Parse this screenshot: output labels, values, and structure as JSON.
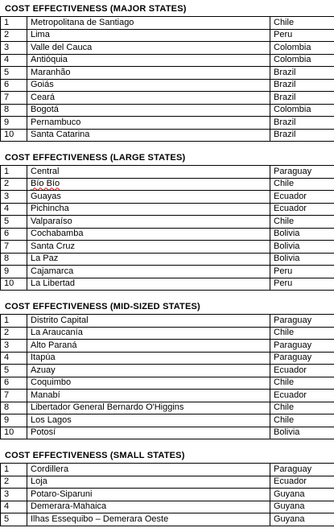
{
  "sections": [
    {
      "title": "COST EFFECTIVENESS  (MAJOR STATES)",
      "rows": [
        [
          1,
          "Metropolitana de Santiago",
          "Chile"
        ],
        [
          2,
          "Lima",
          "Peru"
        ],
        [
          3,
          "Valle del Cauca",
          "Colombia"
        ],
        [
          4,
          "Antióquia",
          "Colombia"
        ],
        [
          5,
          "Maranhão",
          "Brazil"
        ],
        [
          6,
          "Goiás",
          "Brazil"
        ],
        [
          7,
          "Ceará",
          "Brazil"
        ],
        [
          8,
          "Bogotá",
          "Colombia"
        ],
        [
          9,
          "Pernambuco",
          "Brazil"
        ],
        [
          10,
          "Santa Catarina",
          "Brazil"
        ]
      ]
    },
    {
      "title": "COST EFFECTIVENESS  (LARGE STATES)",
      "rows": [
        [
          1,
          "Central",
          "Paraguay"
        ],
        [
          2,
          "Bío Bío",
          "Chile"
        ],
        [
          3,
          "Guayas",
          "Ecuador"
        ],
        [
          4,
          "Pichincha",
          "Ecuador"
        ],
        [
          5,
          "Valparaíso",
          "Chile"
        ],
        [
          6,
          "Cochabamba",
          "Bolivia"
        ],
        [
          7,
          "Santa Cruz",
          "Bolivia"
        ],
        [
          8,
          "La Paz",
          "Bolivia"
        ],
        [
          9,
          "Cajamarca",
          "Peru"
        ],
        [
          10,
          "La Libertad",
          "Peru"
        ]
      ]
    },
    {
      "title": "COST EFFECTIVENESS  (MID-SIZED STATES)",
      "rows": [
        [
          1,
          "Distrito Capital",
          "Paraguay"
        ],
        [
          2,
          "La Araucanía",
          "Chile"
        ],
        [
          3,
          "Alto Paraná",
          "Paraguay"
        ],
        [
          4,
          "Itapúa",
          "Paraguay"
        ],
        [
          5,
          "Azuay",
          "Ecuador"
        ],
        [
          6,
          "Coquimbo",
          "Chile"
        ],
        [
          7,
          "Manabí",
          "Ecuador"
        ],
        [
          8,
          "Libertador General Bernardo O'Higgins",
          "Chile"
        ],
        [
          9,
          "Los Lagos",
          "Chile"
        ],
        [
          10,
          "Potosí",
          "Bolivia"
        ]
      ]
    },
    {
      "title": "COST EFFECTIVENESS  (SMALL STATES)",
      "rows": [
        [
          1,
          "Cordillera",
          "Paraguay"
        ],
        [
          2,
          "Loja",
          "Ecuador"
        ],
        [
          3,
          "Potaro-Siparuni",
          "Guyana"
        ],
        [
          4,
          "Demerara-Mahaica",
          "Guyana"
        ],
        [
          5,
          "Ilhas Essequibo – Demerara Oeste",
          "Guyana"
        ]
      ]
    }
  ]
}
